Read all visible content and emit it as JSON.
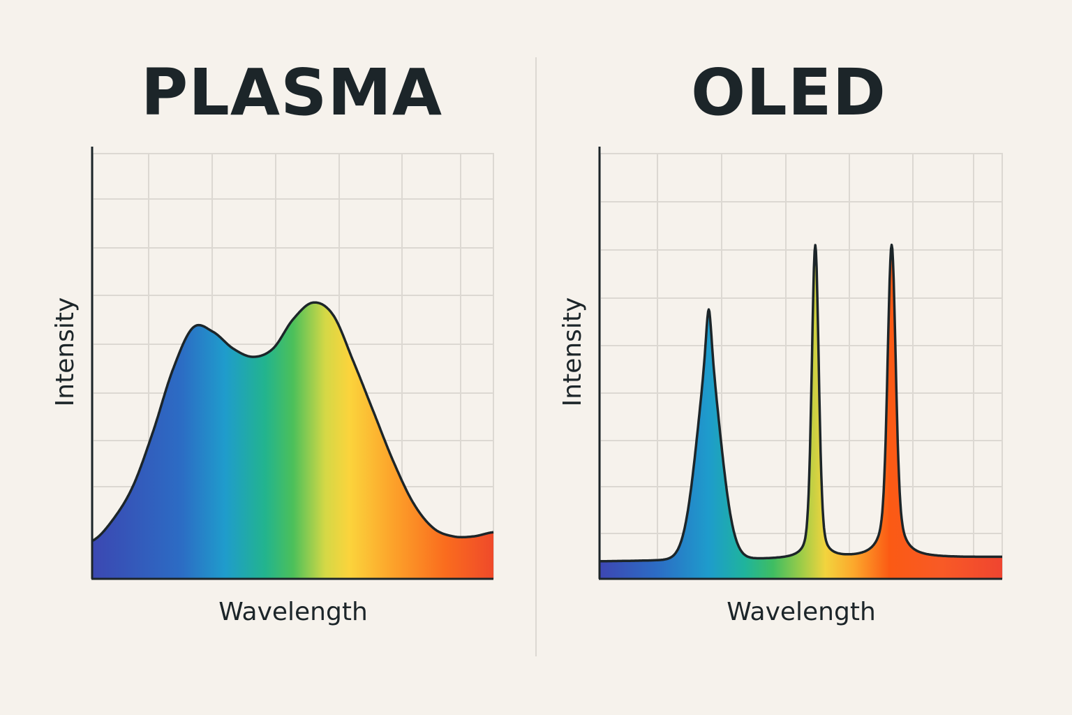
{
  "chart_data": [
    {
      "type": "area",
      "title": "PLASMA",
      "xlabel": "Wavelength",
      "ylabel": "Intensity",
      "grid": true,
      "xlim": [
        0,
        1
      ],
      "ylim": [
        0,
        1
      ],
      "x": [
        0.0,
        0.05,
        0.1,
        0.15,
        0.2,
        0.25,
        0.3,
        0.35,
        0.4,
        0.45,
        0.5,
        0.55,
        0.6,
        0.65,
        0.7,
        0.75,
        0.8,
        0.85,
        0.9,
        0.95,
        1.0
      ],
      "values": [
        0.09,
        0.14,
        0.22,
        0.35,
        0.5,
        0.6,
        0.59,
        0.55,
        0.53,
        0.55,
        0.62,
        0.66,
        0.63,
        0.52,
        0.4,
        0.28,
        0.18,
        0.12,
        0.1,
        0.1,
        0.11
      ],
      "fill": "spectrum gradient"
    },
    {
      "type": "area",
      "title": "OLED",
      "xlabel": "Wavelength",
      "ylabel": "Intensity",
      "grid": true,
      "xlim": [
        0,
        1
      ],
      "ylim": [
        0,
        1
      ],
      "peaks": [
        {
          "x": 0.27,
          "y": 0.66,
          "color": "blue"
        },
        {
          "x": 0.535,
          "y": 0.81,
          "color": "green"
        },
        {
          "x": 0.725,
          "y": 0.81,
          "color": "red"
        }
      ],
      "valleys": [
        {
          "x": 0.41,
          "y": 0.1
        },
        {
          "x": 0.635,
          "y": 0.1
        }
      ],
      "baseline_start": 0.04,
      "baseline_end": 0.05,
      "fill": "spectrum gradient"
    }
  ],
  "colors": {
    "background": "#f6f2ec",
    "grid": "#dcd8d2",
    "axis": "#1c2529",
    "spectrum": [
      "#3c4ab4",
      "#2a78c8",
      "#1ea0c8",
      "#22b48c",
      "#48be5a",
      "#cfd846",
      "#fad23c",
      "#fca028",
      "#fa6e1e",
      "#f04a2a"
    ]
  }
}
